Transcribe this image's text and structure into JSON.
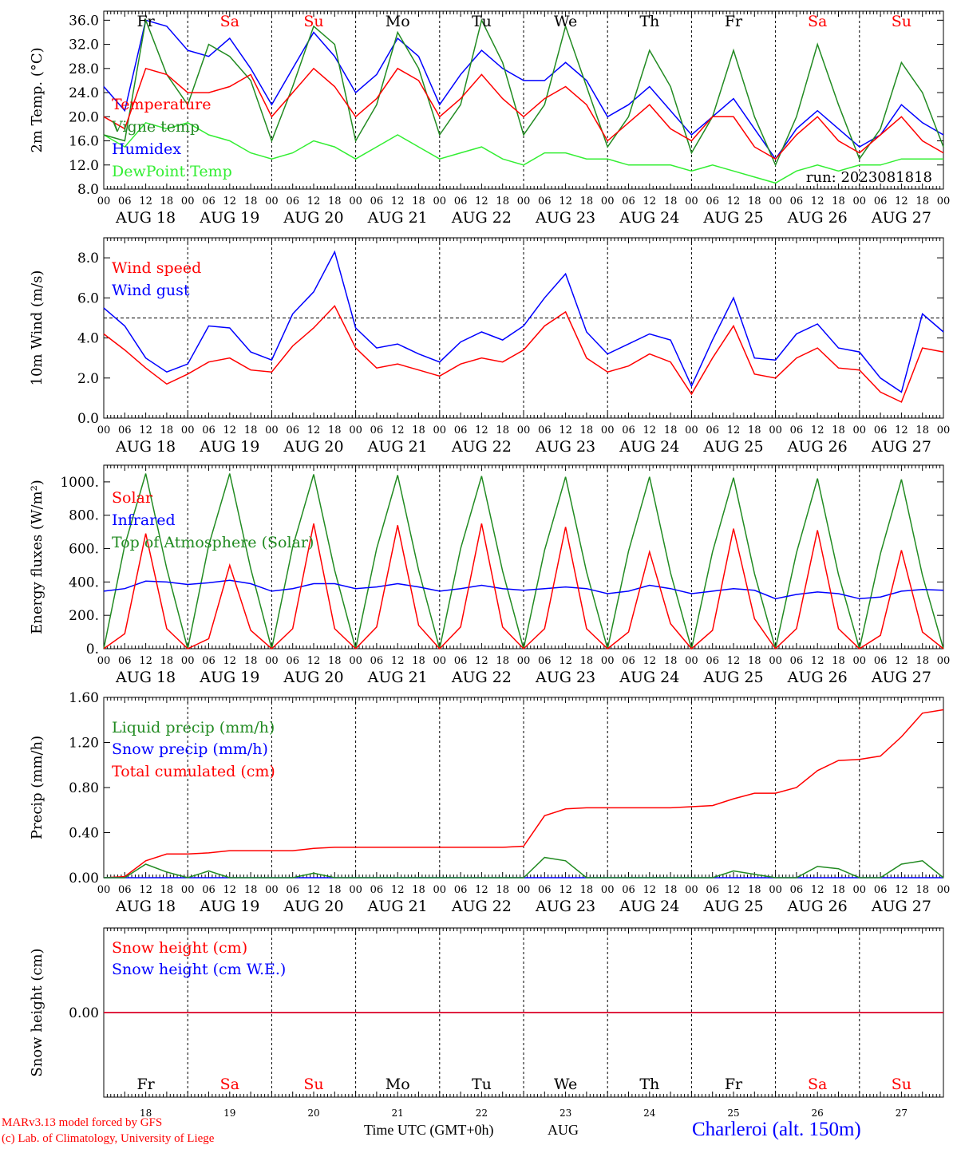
{
  "header": {
    "days": [
      {
        "name": "Fr",
        "date": "AUG 18",
        "num": "18",
        "weekend": false
      },
      {
        "name": "Sa",
        "date": "AUG 19",
        "num": "19",
        "weekend": true
      },
      {
        "name": "Su",
        "date": "AUG 20",
        "num": "20",
        "weekend": true
      },
      {
        "name": "Mo",
        "date": "AUG 21",
        "num": "21",
        "weekend": false
      },
      {
        "name": "Tu",
        "date": "AUG 22",
        "num": "22",
        "weekend": false
      },
      {
        "name": "We",
        "date": "AUG 23",
        "num": "23",
        "weekend": false
      },
      {
        "name": "Th",
        "date": "AUG 24",
        "num": "24",
        "weekend": false
      },
      {
        "name": "Fr",
        "date": "AUG 25",
        "num": "25",
        "weekend": false
      },
      {
        "name": "Sa",
        "date": "AUG 26",
        "num": "26",
        "weekend": true
      },
      {
        "name": "Su",
        "date": "AUG 27",
        "num": "27",
        "weekend": true
      }
    ],
    "hour_ticks": [
      "00",
      "06",
      "12",
      "18"
    ],
    "final_tick": "00"
  },
  "colors": {
    "temperature": "#ff0000",
    "vigne": "#228b22",
    "humidex": "#0000ff",
    "dewpoint": "#33ee33",
    "wind": "#ff0000",
    "gust": "#0000ff",
    "solar": "#ff0000",
    "infrared": "#0000ff",
    "toa": "#228b22",
    "liquid": "#228b22",
    "snowprecip": "#0000ff",
    "cumul": "#ff0000",
    "snowheight": "#ff0000",
    "snowwe": "#0000ff",
    "weekend": "#ff0000",
    "axis": "#000000",
    "footer_red": "#ff0000",
    "station": "#0000ff"
  },
  "chart_data": [
    {
      "type": "line",
      "ylabel": "2m Temp. (°C)",
      "ylim": [
        8,
        37.5
      ],
      "yticks": [
        "36.0",
        "32.0",
        "28.0",
        "24.0",
        "20.0",
        "16.0",
        "12.0",
        "8.0"
      ],
      "annotation": "run: 2023081818",
      "x_hours": [
        0,
        6,
        12,
        18,
        24,
        30,
        36,
        42,
        48,
        54,
        60,
        66,
        72,
        78,
        84,
        90,
        96,
        102,
        108,
        114,
        120,
        126,
        132,
        138,
        144,
        150,
        156,
        162,
        168,
        174,
        180,
        186,
        192,
        198,
        204,
        210,
        216,
        222,
        228,
        234,
        240
      ],
      "series": [
        {
          "name": "Temperature",
          "color_key": "temperature",
          "values": [
            20,
            18,
            28,
            27,
            24,
            24,
            25,
            27,
            20,
            24,
            28,
            25,
            20,
            23,
            28,
            26,
            20,
            23,
            27,
            23,
            20,
            23,
            25,
            22,
            16,
            19,
            22,
            18,
            16,
            20,
            20,
            15,
            13,
            17,
            20,
            16,
            14,
            17,
            20,
            16,
            14
          ]
        },
        {
          "name": "Vigne temp",
          "color_key": "vigne",
          "values": [
            17,
            16,
            36,
            27,
            22,
            32,
            30,
            26,
            16,
            25,
            35,
            32,
            16,
            22,
            34,
            28,
            17,
            22,
            36,
            29,
            17,
            22,
            35,
            25,
            15,
            20,
            31,
            25,
            14,
            20,
            31,
            20,
            12,
            20,
            32,
            22,
            13,
            18,
            29,
            24,
            15
          ]
        },
        {
          "name": "Humidex",
          "color_key": "humidex",
          "values": [
            25,
            21,
            36,
            35,
            31,
            30,
            33,
            28,
            22,
            28,
            34,
            30,
            24,
            27,
            33,
            30,
            22,
            27,
            31,
            28,
            26,
            26,
            29,
            26,
            20,
            22,
            25,
            21,
            17,
            20,
            23,
            18,
            13,
            18,
            21,
            18,
            15,
            17,
            22,
            19,
            17
          ]
        },
        {
          "name": "DewPoint Temp",
          "color_key": "dewpoint",
          "values": [
            17,
            15,
            19,
            18,
            19,
            17,
            16,
            14,
            13,
            14,
            16,
            15,
            13,
            15,
            17,
            15,
            13,
            14,
            15,
            13,
            12,
            14,
            14,
            13,
            13,
            12,
            12,
            12,
            11,
            12,
            11,
            10,
            9,
            11,
            12,
            11,
            12,
            12,
            13,
            13,
            13
          ]
        }
      ]
    },
    {
      "type": "line",
      "ylabel": "10m Wind (m/s)",
      "ylim": [
        0,
        9
      ],
      "yticks": [
        "8.0",
        "6.0",
        "4.0",
        "2.0",
        "0.0"
      ],
      "reference_line": 5,
      "x_hours": [
        0,
        6,
        12,
        18,
        24,
        30,
        36,
        42,
        48,
        54,
        60,
        66,
        72,
        78,
        84,
        90,
        96,
        102,
        108,
        114,
        120,
        126,
        132,
        138,
        144,
        150,
        156,
        162,
        168,
        174,
        180,
        186,
        192,
        198,
        204,
        210,
        216,
        222,
        228,
        234,
        240
      ],
      "series": [
        {
          "name": "Wind speed",
          "color_key": "wind",
          "values": [
            4.2,
            3.4,
            2.5,
            1.7,
            2.2,
            2.8,
            3.0,
            2.4,
            2.3,
            3.6,
            4.5,
            5.6,
            3.5,
            2.5,
            2.7,
            2.4,
            2.1,
            2.7,
            3.0,
            2.8,
            3.4,
            4.6,
            5.3,
            3.0,
            2.3,
            2.6,
            3.2,
            2.8,
            1.2,
            3.0,
            4.6,
            2.2,
            2.0,
            3.0,
            3.5,
            2.5,
            2.4,
            1.3,
            0.8,
            3.5,
            3.3
          ]
        },
        {
          "name": "Wind gust",
          "color_key": "gust",
          "values": [
            5.5,
            4.6,
            3.0,
            2.3,
            2.7,
            4.6,
            4.5,
            3.3,
            2.9,
            5.2,
            6.3,
            8.3,
            4.5,
            3.5,
            3.7,
            3.2,
            2.8,
            3.8,
            4.3,
            3.9,
            4.6,
            6.0,
            7.2,
            4.3,
            3.2,
            3.7,
            4.2,
            3.9,
            1.6,
            3.9,
            6.0,
            3.0,
            2.9,
            4.2,
            4.7,
            3.5,
            3.3,
            2.0,
            1.3,
            5.2,
            4.3
          ]
        }
      ]
    },
    {
      "type": "line",
      "ylabel": "Energy fluxes (W/m²)",
      "ylim": [
        0,
        1100
      ],
      "yticks": [
        "1000.",
        "800.",
        "600.",
        "400.",
        "200.",
        "0."
      ],
      "x_hours": [
        0,
        6,
        12,
        18,
        24,
        30,
        36,
        42,
        48,
        54,
        60,
        66,
        72,
        78,
        84,
        90,
        96,
        102,
        108,
        114,
        120,
        126,
        132,
        138,
        144,
        150,
        156,
        162,
        168,
        174,
        180,
        186,
        192,
        198,
        204,
        210,
        216,
        222,
        228,
        234,
        240
      ],
      "series": [
        {
          "name": "Solar",
          "color_key": "solar",
          "values": [
            0,
            90,
            690,
            120,
            0,
            60,
            500,
            110,
            0,
            120,
            750,
            120,
            0,
            130,
            740,
            140,
            0,
            130,
            750,
            130,
            0,
            120,
            730,
            120,
            0,
            100,
            580,
            150,
            0,
            110,
            720,
            180,
            0,
            120,
            710,
            120,
            0,
            80,
            590,
            100,
            0
          ]
        },
        {
          "name": "Infrared",
          "color_key": "infrared",
          "values": [
            345,
            360,
            405,
            400,
            385,
            395,
            410,
            390,
            345,
            360,
            390,
            390,
            360,
            370,
            390,
            370,
            345,
            360,
            380,
            360,
            350,
            360,
            370,
            360,
            330,
            345,
            380,
            360,
            330,
            345,
            360,
            350,
            300,
            325,
            340,
            330,
            300,
            310,
            345,
            355,
            350
          ]
        },
        {
          "name": "Top of Atmosphere (Solar)",
          "color_key": "toa",
          "values": [
            0,
            620,
            1050,
            480,
            0,
            620,
            1050,
            480,
            0,
            610,
            1045,
            470,
            0,
            600,
            1040,
            470,
            0,
            600,
            1035,
            465,
            0,
            590,
            1030,
            460,
            0,
            585,
            1030,
            455,
            0,
            580,
            1025,
            450,
            0,
            575,
            1020,
            445,
            0,
            570,
            1015,
            440,
            0
          ]
        }
      ]
    },
    {
      "type": "line",
      "ylabel": "Precip (mm/h)",
      "ylim": [
        0,
        1.6
      ],
      "yticks": [
        "1.60",
        "1.20",
        "0.80",
        "0.40",
        "0.00"
      ],
      "x_hours": [
        0,
        6,
        12,
        18,
        24,
        30,
        36,
        42,
        48,
        54,
        60,
        66,
        72,
        78,
        84,
        90,
        96,
        102,
        108,
        114,
        120,
        126,
        132,
        138,
        144,
        150,
        156,
        162,
        168,
        174,
        180,
        186,
        192,
        198,
        204,
        210,
        216,
        222,
        228,
        234,
        240
      ],
      "series": [
        {
          "name": "Liquid precip (mm/h)",
          "color_key": "liquid",
          "values": [
            0,
            0,
            0.12,
            0.05,
            0,
            0.06,
            0,
            0,
            0,
            0,
            0.04,
            0,
            0,
            0,
            0,
            0,
            0,
            0,
            0,
            0,
            0,
            0.18,
            0.15,
            0,
            0,
            0,
            0,
            0,
            0,
            0,
            0.06,
            0.03,
            0,
            0,
            0.1,
            0.08,
            0,
            0,
            0.12,
            0.15,
            0
          ]
        },
        {
          "name": "Snow precip (mm/h)",
          "color_key": "snowprecip",
          "values": [
            0,
            0,
            0,
            0,
            0,
            0,
            0,
            0,
            0,
            0,
            0,
            0,
            0,
            0,
            0,
            0,
            0,
            0,
            0,
            0,
            0,
            0,
            0,
            0,
            0,
            0,
            0,
            0,
            0,
            0,
            0,
            0,
            0,
            0,
            0,
            0,
            0,
            0,
            0,
            0,
            0
          ]
        },
        {
          "name": "Total cumulated (cm)",
          "color_key": "cumul",
          "values": [
            0,
            0.01,
            0.15,
            0.21,
            0.21,
            0.22,
            0.24,
            0.24,
            0.24,
            0.24,
            0.26,
            0.27,
            0.27,
            0.27,
            0.27,
            0.27,
            0.27,
            0.27,
            0.27,
            0.27,
            0.28,
            0.55,
            0.61,
            0.62,
            0.62,
            0.62,
            0.62,
            0.62,
            0.63,
            0.64,
            0.7,
            0.75,
            0.75,
            0.8,
            0.95,
            1.04,
            1.05,
            1.08,
            1.25,
            1.46,
            1.49
          ]
        }
      ]
    },
    {
      "type": "line",
      "ylabel": "Snow height (cm)",
      "ylim": [
        -0.5,
        0.5
      ],
      "yticks": [
        "0.00"
      ],
      "x_hours": [
        0,
        240
      ],
      "series": [
        {
          "name": "Snow height (cm)",
          "color_key": "snowheight",
          "values": [
            0,
            0
          ]
        },
        {
          "name": "Snow height (cm W.E.)",
          "color_key": "snowwe",
          "values": [
            0,
            0
          ]
        }
      ]
    }
  ],
  "footer": {
    "credit_line1": "MARv3.13 model forced by GFS",
    "credit_line2": "(c) Lab. of Climatology, University of Liege",
    "xlabel": "Time UTC (GMT+0h)",
    "month": "AUG",
    "station": "Charleroi (alt. 150m)"
  }
}
